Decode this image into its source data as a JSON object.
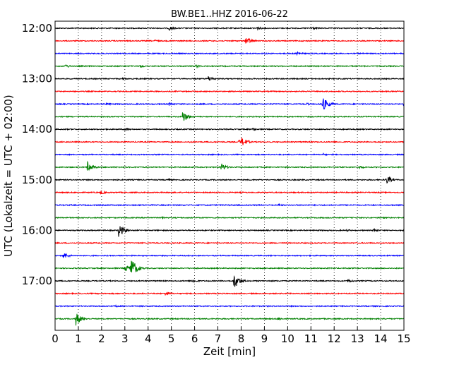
{
  "chart_data": {
    "type": "line",
    "title": "BW.BE1..HHZ 2016-06-22",
    "xlabel": "Zeit  [min]",
    "ylabel": "UTC (Lokalzeit = UTC + 02:00)",
    "xlim": [
      0,
      15
    ],
    "x_ticks": [
      "0",
      "1",
      "2",
      "3",
      "4",
      "5",
      "6",
      "7",
      "8",
      "9",
      "10",
      "11",
      "12",
      "13",
      "14",
      "15"
    ],
    "y_ticks": [
      "12:00",
      "13:00",
      "14:00",
      "15:00",
      "16:00",
      "17:00"
    ],
    "grid": "vertical dotted",
    "trace_interval_min": 15,
    "trace_colors": [
      "#000000",
      "#ff0000",
      "#0000ff",
      "#008000"
    ],
    "series": [
      {
        "start": "12:00",
        "events": [
          [
            4.9,
            0.45
          ],
          [
            8.7,
            0.35
          ],
          [
            11.0,
            0.4
          ]
        ]
      },
      {
        "start": "12:15",
        "events": [
          [
            4.3,
            0.25
          ],
          [
            8.2,
            0.85
          ],
          [
            8.35,
            0.5
          ]
        ]
      },
      {
        "start": "12:30",
        "events": [
          [
            9.0,
            0.2
          ],
          [
            10.4,
            0.5
          ]
        ]
      },
      {
        "start": "12:45",
        "events": [
          [
            0.45,
            0.4
          ],
          [
            3.65,
            0.4
          ],
          [
            6.05,
            0.35
          ]
        ]
      },
      {
        "start": "13:00",
        "events": [
          [
            2.9,
            0.25
          ],
          [
            6.6,
            0.6
          ]
        ]
      },
      {
        "start": "13:15",
        "events": []
      },
      {
        "start": "13:30",
        "events": [
          [
            2.2,
            0.3
          ],
          [
            4.9,
            0.35
          ],
          [
            10.8,
            0.3
          ],
          [
            11.5,
            1.5
          ],
          [
            15.0,
            0.4
          ]
        ]
      },
      {
        "start": "13:45",
        "events": [
          [
            5.5,
            1.2
          ]
        ]
      },
      {
        "start": "14:00",
        "events": [
          [
            3.0,
            0.35
          ],
          [
            8.5,
            0.35
          ]
        ]
      },
      {
        "start": "14:15",
        "events": [
          [
            5.8,
            0.2
          ],
          [
            8.05,
            0.9
          ],
          [
            7.9,
            0.5
          ]
        ]
      },
      {
        "start": "14:30",
        "events": [
          [
            11.5,
            0.3
          ]
        ]
      },
      {
        "start": "14:45",
        "events": [
          [
            1.4,
            1.1
          ],
          [
            7.15,
            0.8
          ],
          [
            13.1,
            0.35
          ]
        ]
      },
      {
        "start": "15:00",
        "events": [
          [
            4.8,
            0.3
          ],
          [
            14.25,
            0.9
          ]
        ]
      },
      {
        "start": "15:15",
        "events": [
          [
            1.95,
            0.45
          ]
        ]
      },
      {
        "start": "15:30",
        "events": [
          [
            9.6,
            0.25
          ]
        ]
      },
      {
        "start": "15:45",
        "events": [
          [
            4.6,
            0.3
          ]
        ]
      },
      {
        "start": "16:00",
        "events": [
          [
            2.75,
            1.3
          ],
          [
            12.5,
            0.3
          ],
          [
            13.7,
            0.35
          ]
        ]
      },
      {
        "start": "16:15",
        "events": []
      },
      {
        "start": "16:30",
        "events": [
          [
            0.35,
            0.75
          ]
        ]
      },
      {
        "start": "16:45",
        "events": [
          [
            3.25,
            2.4
          ],
          [
            3.0,
            0.8
          ]
        ]
      },
      {
        "start": "17:00",
        "events": [
          [
            5.9,
            0.45
          ],
          [
            7.7,
            1.6
          ],
          [
            12.6,
            0.4
          ]
        ]
      },
      {
        "start": "17:15",
        "events": [
          [
            4.75,
            0.5
          ]
        ]
      },
      {
        "start": "17:30",
        "events": [
          [
            2.6,
            0.2
          ]
        ]
      },
      {
        "start": "17:45",
        "events": [
          [
            0.9,
            1.4
          ],
          [
            9.6,
            0.35
          ]
        ]
      }
    ]
  }
}
